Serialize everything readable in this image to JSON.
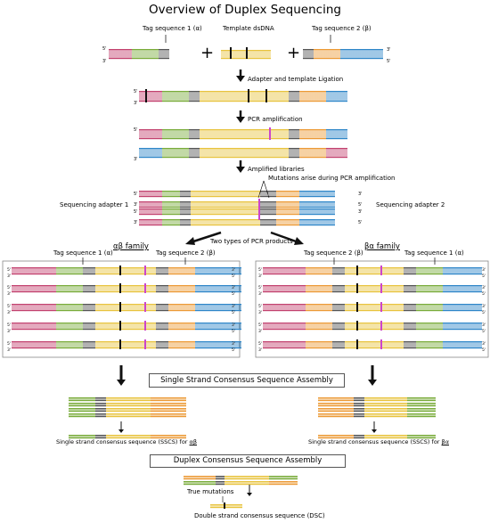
{
  "title": "Overview of Duplex Sequencing",
  "labels": {
    "tag_alpha": "Tag sequence 1 (α)",
    "template": "Template dsDNA",
    "tag_beta": "Tag sequence 2 (β)",
    "plus": "+",
    "five_prime": "5'",
    "three_prime": "3'",
    "step_ligation": "Adapter and template Ligation",
    "step_pcr": "PCR amplification",
    "step_libraries": "Amplified libraries",
    "mutations_pcr": "Mutations arise during PCR amplification",
    "seq_adapter_1": "Sequencing adapter 1",
    "seq_adapter_2": "Sequencing adapter 2",
    "two_types": "Two types of PCR products",
    "ab_family": "αβ family",
    "ba_family": "βα family",
    "tag_alpha_left": "Tag sequence 1 (α)",
    "tag_beta_left": "Tag sequence 2 (β)",
    "tag_beta_right": "Tag sequence 2 (β)",
    "tag_alpha_right": "Tag sequence 1 (α)",
    "sscs_box": "Single Strand Consensus Sequence Assembly",
    "sscs_left": "Single strand consensus sequence (SSCS) for ",
    "sscs_left_suffix": "αβ",
    "sscs_right": "Single strand consensus sequence (SSCS) for ",
    "sscs_right_suffix": "βα",
    "dcs_box": "Duplex Consensus Sequence Assembly",
    "true_mutations": "True mutations",
    "dsc_label": "Double strand consensus sequence (DSC)"
  },
  "colors": {
    "pink": "#c2416e",
    "blue": "#2e86c8",
    "green": "#79ab3a",
    "orange": "#ec9a36",
    "gray": "#555555",
    "yellow": "#e8c33e",
    "mutation": "#cc44cc",
    "black": "#111111",
    "frame": "#888888"
  }
}
